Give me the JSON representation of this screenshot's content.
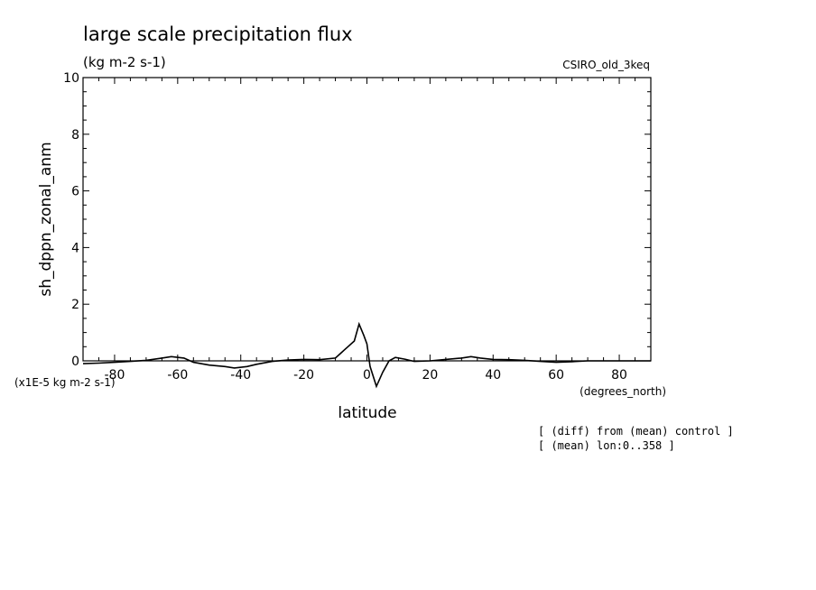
{
  "chart_data": {
    "type": "line",
    "title": "large scale precipitation flux",
    "subtitle": "(kg m-2 s-1)",
    "model": "CSIRO_old_3keq",
    "xlabel": "latitude",
    "xunits": "(degrees_north)",
    "ylabel": "sh_dppn_zonal_anm",
    "yunits": "(x1E-5 kg m-2 s-1)",
    "xlim": [
      -90,
      90
    ],
    "ylim": [
      0,
      10
    ],
    "x_ticks": [
      -80,
      -60,
      -40,
      -20,
      0,
      20,
      40,
      60,
      80
    ],
    "x_tick_labels": [
      "-80",
      "-60",
      "-40",
      "-20",
      "0",
      "20",
      "40",
      "60",
      "80"
    ],
    "y_ticks": [
      0,
      2,
      4,
      6,
      8,
      10
    ],
    "y_tick_labels": [
      "0",
      "2",
      "4",
      "6",
      "8",
      "10"
    ],
    "notes": [
      "[ (diff) from (mean) control ]",
      "[ (mean) lon:0..358 ]"
    ],
    "series": [
      {
        "x": [
          -90,
          -85,
          -80,
          -75,
          -70,
          -65,
          -62,
          -58,
          -55,
          -50,
          -45,
          -42,
          -38,
          -35,
          -30,
          -25,
          -20,
          -15,
          -10,
          -8,
          -6,
          -4,
          -2.5,
          -1,
          0,
          1,
          3,
          5,
          7,
          9,
          12,
          15,
          20,
          25,
          30,
          33,
          36,
          40,
          45,
          50,
          55,
          60,
          65,
          70,
          75,
          80,
          85,
          90
        ],
        "y": [
          -0.1,
          -0.08,
          -0.05,
          -0.02,
          0.02,
          0.1,
          0.15,
          0.1,
          -0.05,
          -0.15,
          -0.2,
          -0.25,
          -0.2,
          -0.12,
          -0.02,
          0.03,
          0.05,
          0.04,
          0.1,
          0.3,
          0.5,
          0.7,
          1.3,
          0.9,
          0.6,
          -0.2,
          -0.9,
          -0.4,
          0.0,
          0.12,
          0.06,
          -0.02,
          0.0,
          0.05,
          0.1,
          0.15,
          0.1,
          0.05,
          0.04,
          0.02,
          -0.02,
          -0.05,
          -0.03,
          0.0,
          0.0,
          0.0,
          0.0,
          0.0
        ]
      }
    ]
  }
}
